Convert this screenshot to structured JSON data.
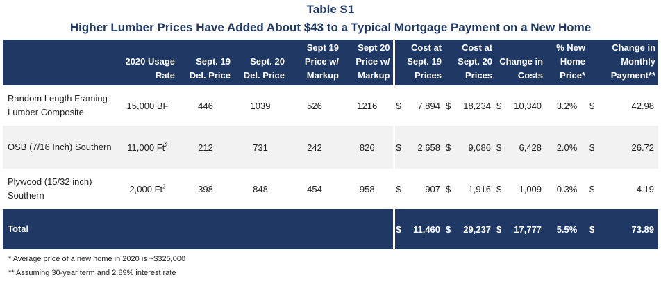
{
  "title": "Table S1",
  "subtitle": "Higher Lumber Prices Have Added About $43 to a Typical Mortgage Payment on a New Home",
  "headers": {
    "usage": [
      "2020 Usage",
      "Rate"
    ],
    "sept19_del": [
      "Sept. 19",
      "Del. Price"
    ],
    "sept20_del": [
      "Sept. 20",
      "Del. Price"
    ],
    "sept19_markup": [
      "Sept 19",
      "Price w/",
      "Markup"
    ],
    "sept20_markup": [
      "Sept 20",
      "Price w/",
      "Markup"
    ],
    "cost19": [
      "Cost at",
      "Sept. 19",
      "Prices"
    ],
    "cost20": [
      "Cost at",
      "Sept. 20",
      "Prices"
    ],
    "change_costs": [
      "Change in",
      "Costs"
    ],
    "pct_home": [
      "% New",
      "Home",
      "Price*"
    ],
    "change_payment": [
      "Change in",
      "Monthly",
      "Payment**"
    ]
  },
  "rows": [
    {
      "name_lines": [
        "Random Length Framing",
        "Lumber Composite"
      ],
      "usage": "15,000 BF",
      "usage_sup": "",
      "sept19_del": "446",
      "sept20_del": "1039",
      "sept19_markup": "526",
      "sept20_markup": "1216",
      "cost19": "7,894",
      "cost20": "18,234",
      "change": "10,340",
      "pct": "3.2%",
      "payment": "42.98"
    },
    {
      "name_lines": [
        "OSB (7/16 Inch) Southern"
      ],
      "usage": "11,000 Ft",
      "usage_sup": "2",
      "sept19_del": "212",
      "sept20_del": "731",
      "sept19_markup": "242",
      "sept20_markup": "826",
      "cost19": "2,658",
      "cost20": "9,086",
      "change": "6,428",
      "pct": "2.0%",
      "payment": "26.72"
    },
    {
      "name_lines": [
        "Plywood (15/32 inch)",
        "Southern"
      ],
      "usage": "2,000 Ft",
      "usage_sup": "2",
      "sept19_del": "398",
      "sept20_del": "848",
      "sept19_markup": "454",
      "sept20_markup": "958",
      "cost19": "907",
      "cost20": "1,916",
      "change": "1,009",
      "pct": "0.3%",
      "payment": "4.19"
    }
  ],
  "total": {
    "label": "Total",
    "cost19": "11,460",
    "cost20": "29,237",
    "change": "17,777",
    "pct": "5.5%",
    "payment": "73.89"
  },
  "currency": "$",
  "notes": [
    "* Average price of a new home in 2020 is ~$325,000",
    "** Assuming 30-year term and 2.89% interest rate"
  ],
  "colors": {
    "header_bg": "#1f3864",
    "title": "#1f3864",
    "stripe": "#f2f2f2"
  }
}
